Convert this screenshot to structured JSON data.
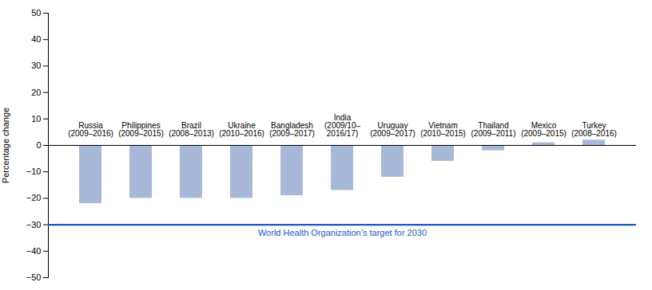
{
  "chart_data": {
    "type": "bar",
    "categories": [
      "Russia\n(2009–2016)",
      "Philippines\n(2009–2015)",
      "Brazil\n(2008–2013)",
      "Ukraine\n(2010–2016)",
      "Bangladesh\n(2009–2017)",
      "India\n(2009/10–\n2016/17)",
      "Uruguay\n(2009–2017)",
      "Vietnam\n(2010–2015)",
      "Thailand\n(2009–2011)",
      "Mexico\n(2009–2015)",
      "Turkey\n(2008–2016)"
    ],
    "values": [
      -22,
      -20,
      -20,
      -20,
      -19,
      -17,
      -12,
      -6,
      -2,
      1,
      2
    ],
    "color": "#a8b8d8",
    "ylabel": "Percentage change",
    "ylim": [
      -50,
      50
    ],
    "yticks": [
      -50,
      -40,
      -30,
      -20,
      -10,
      0,
      10,
      20,
      30,
      40,
      50
    ],
    "grid": false,
    "reference_line": {
      "value": -30,
      "label": "World Health Organization’s target for 2030",
      "color": "#1a5abf"
    }
  }
}
